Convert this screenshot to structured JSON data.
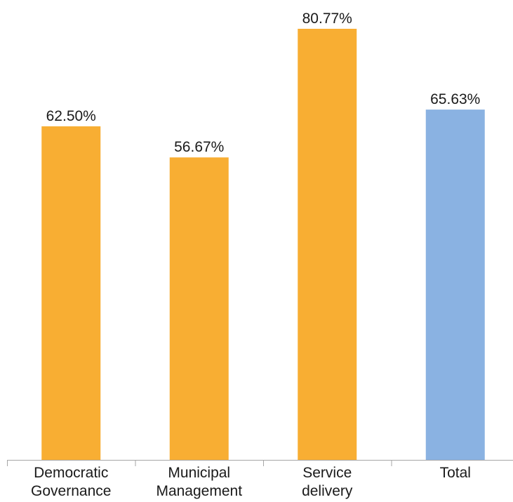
{
  "chart_data": {
    "type": "bar",
    "categories": [
      [
        "Democratic",
        "Governance"
      ],
      [
        "Municipal",
        "Management"
      ],
      [
        "Service",
        "delivery"
      ],
      [
        "Total"
      ]
    ],
    "values": [
      62.5,
      56.67,
      80.77,
      65.63
    ],
    "value_labels": [
      "62.50%",
      "56.67%",
      "80.77%",
      "65.63%"
    ],
    "colors": [
      "#F8AE33",
      "#F8AE33",
      "#F8AE33",
      "#8AB2E2"
    ],
    "title": "",
    "xlabel": "",
    "ylabel": "",
    "ylim": [
      0,
      90
    ],
    "grid": false,
    "legend": "none"
  }
}
